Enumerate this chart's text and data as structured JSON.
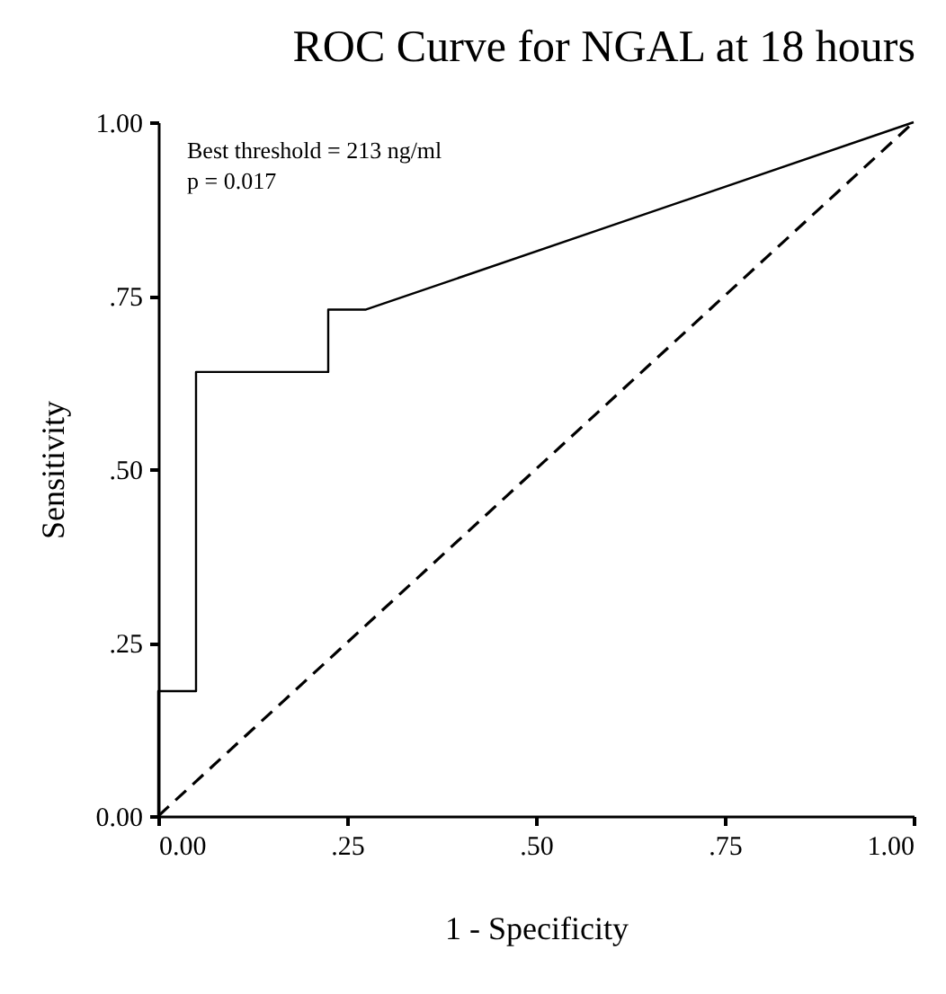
{
  "chart_data": {
    "type": "line",
    "title": "ROC Curve for NGAL at 18 hours",
    "xlabel": "1 - Specificity",
    "ylabel": "Sensitivity",
    "annotations": [
      "Best threshold = 213 ng/ml",
      "p = 0.017"
    ],
    "series": [
      {
        "x": [
          0,
          0,
          0.05,
          0.05,
          0.225,
          0.225,
          0.275,
          1
        ],
        "values": [
          0,
          0.18,
          0.18,
          0.64,
          0.64,
          0.73,
          0.73,
          1
        ],
        "color": "#000000",
        "line_style": "solid"
      },
      {
        "x": [
          0,
          1
        ],
        "values": [
          0,
          1
        ],
        "color": "#000000",
        "line_style": "dashed"
      }
    ],
    "xlim": [
      0,
      1
    ],
    "ylim": [
      0,
      1
    ],
    "xticks": [
      {
        "value": 0,
        "label": "0.00"
      },
      {
        "value": 0.25,
        "label": ".25"
      },
      {
        "value": 0.5,
        "label": ".50"
      },
      {
        "value": 0.75,
        "label": ".75"
      },
      {
        "value": 1,
        "label": "1.00"
      }
    ],
    "yticks": [
      {
        "value": 0,
        "label": "0.00"
      },
      {
        "value": 0.25,
        "label": ".25"
      },
      {
        "value": 0.5,
        "label": ".50"
      },
      {
        "value": 0.75,
        "label": ".75"
      },
      {
        "value": 1,
        "label": "1.00"
      }
    ],
    "grid": false,
    "marker": "none"
  }
}
